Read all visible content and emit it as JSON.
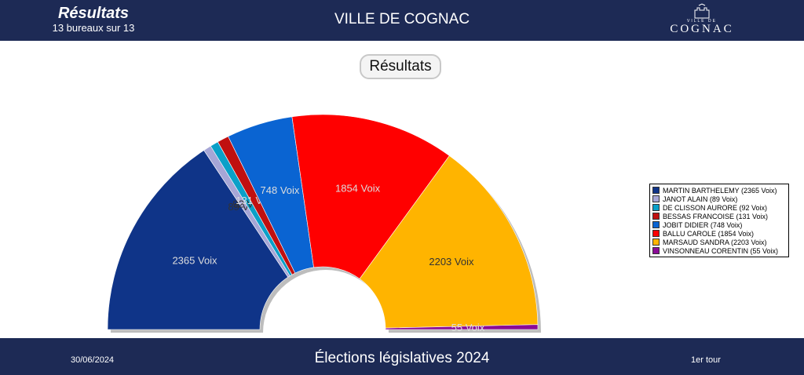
{
  "header": {
    "title": "Résultats",
    "subtitle": "13 bureaux sur 13",
    "city": "VILLE DE COGNAC",
    "logo_text": "COGNAC",
    "logo_small": "VILLE DE"
  },
  "chart_data": {
    "type": "pie",
    "title": "Résultats",
    "layout": "semicircle-donut",
    "legend_position": "right",
    "unit": "Voix",
    "categories": [
      "MARTIN BARTHELEMY",
      "JANOT ALAIN",
      "DE CLISSON AURORE",
      "BESSAS FRANCOISE",
      "JOBIT DIDIER",
      "BALLU CAROLE",
      "MARSAUD SANDRA",
      "VINSONNEAU CORENTIN"
    ],
    "values": [
      2365,
      89,
      92,
      131,
      748,
      1854,
      2203,
      55
    ],
    "colors": [
      "#0f3488",
      "#a6a6d6",
      "#0aa0c8",
      "#c01010",
      "#0a64d2",
      "#ff0000",
      "#ffb400",
      "#8a0a96"
    ],
    "labels": [
      "2365 Voix",
      "89 Voix",
      "92 Voix",
      "131 Voix",
      "748 Voix",
      "1854 Voix",
      "2203 Voix",
      "55 Voix"
    ],
    "legend": [
      "MARTIN BARTHELEMY (2365 Voix)",
      "JANOT ALAIN (89 Voix)",
      "DE CLISSON AURORE (92 Voix)",
      "BESSAS FRANCOISE (131 Voix)",
      "JOBIT DIDIER (748 Voix)",
      "BALLU CAROLE (1854 Voix)",
      "MARSAUD SANDRA (2203 Voix)",
      "VINSONNEAU CORENTIN (55 Voix)"
    ],
    "label_colors": [
      "#dddddd",
      "#333333",
      "#333333",
      "#dddddd",
      "#dddddd",
      "#dddddd",
      "#333333",
      "#dddddd"
    ]
  },
  "footer": {
    "date": "30/06/2024",
    "title": "Élections législatives 2024",
    "round": "1er tour"
  }
}
